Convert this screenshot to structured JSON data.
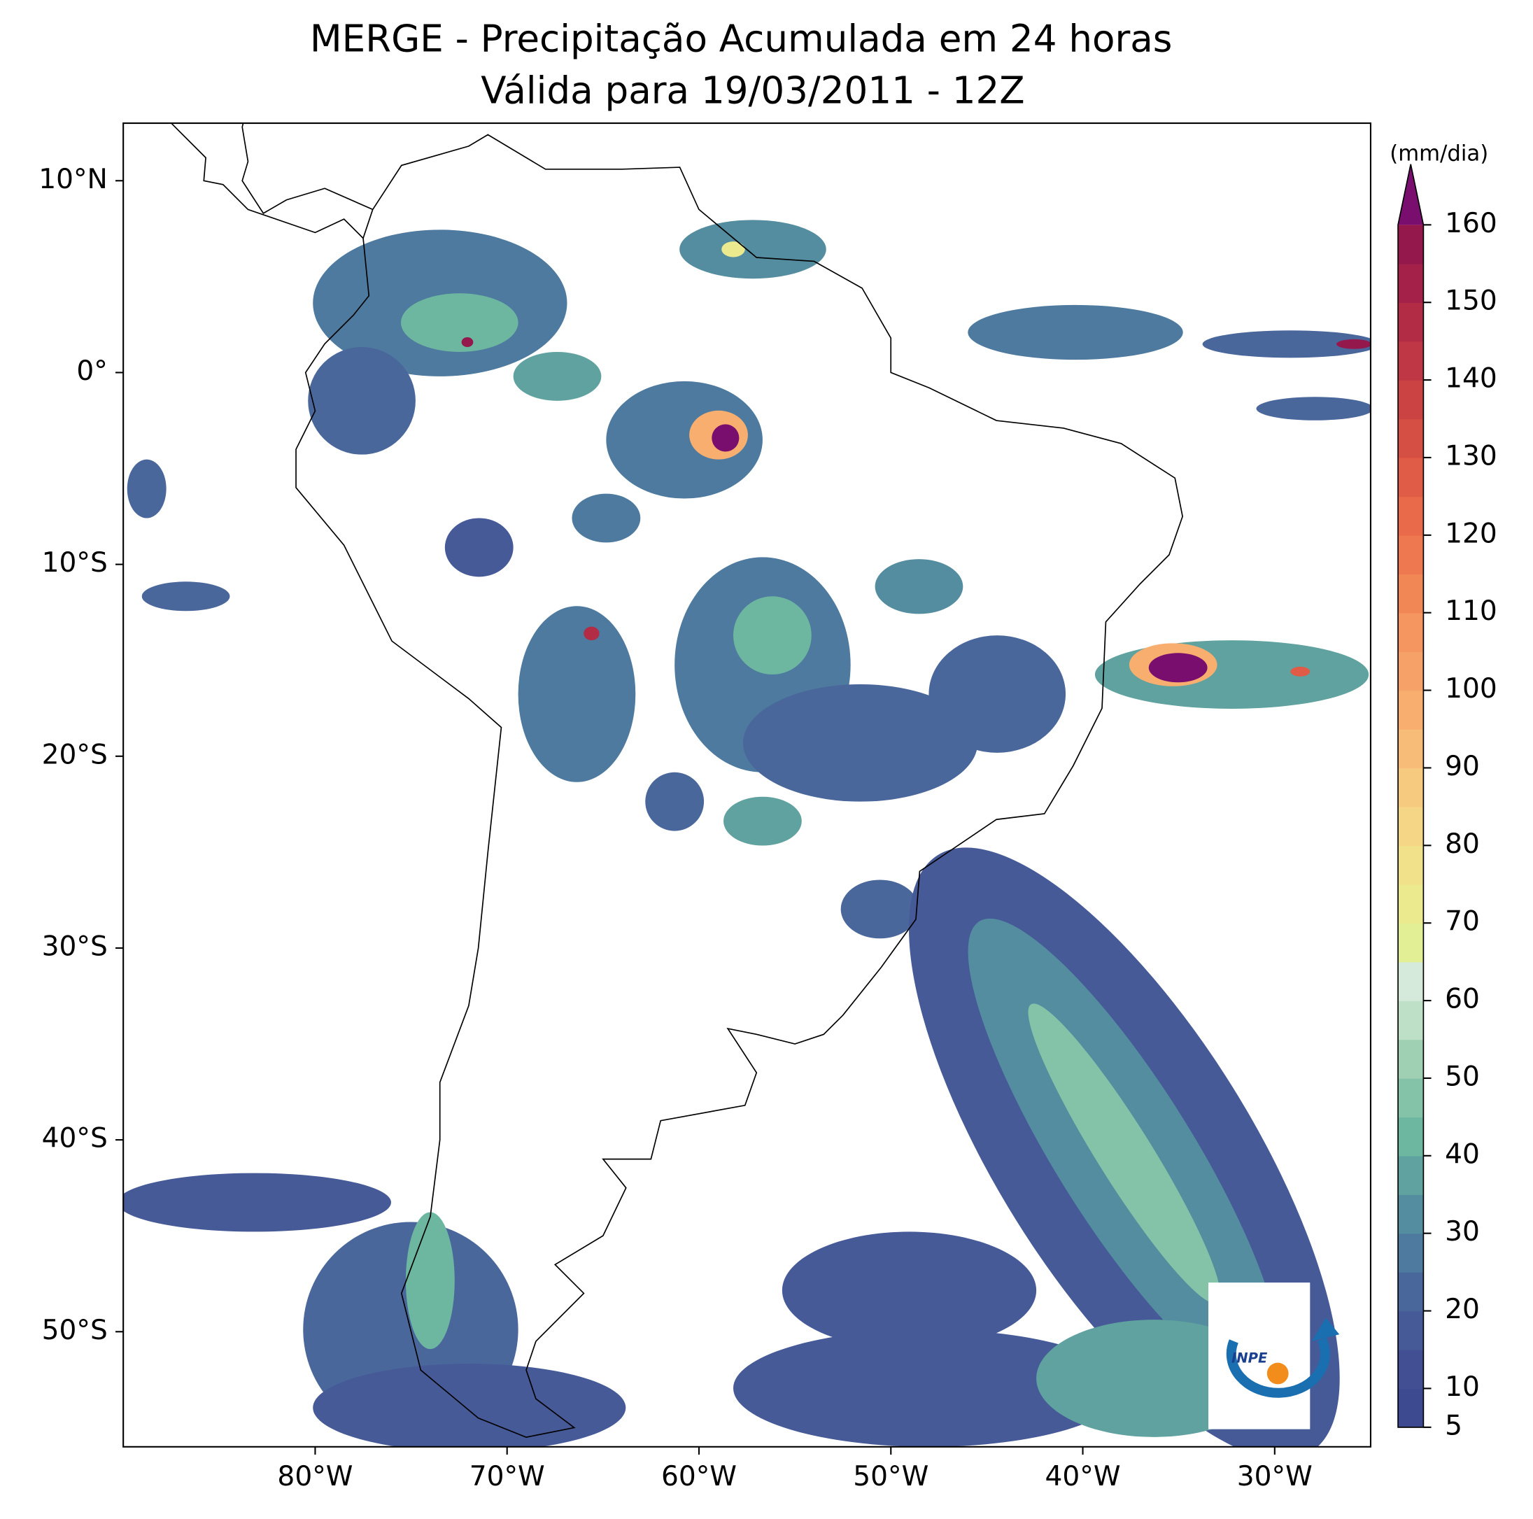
{
  "title": [
    "MERGE - Precipitação Acumulada em 24 horas",
    "Válida para 19/03/2011 - 12Z"
  ],
  "map": {
    "xlim": [
      -90,
      -25
    ],
    "ylim": [
      -56,
      13
    ],
    "xticks": [
      {
        "value": -80,
        "label": "80°W"
      },
      {
        "value": -70,
        "label": "70°W"
      },
      {
        "value": -60,
        "label": "60°W"
      },
      {
        "value": -50,
        "label": "50°W"
      },
      {
        "value": -40,
        "label": "40°W"
      },
      {
        "value": -30,
        "label": "30°W"
      }
    ],
    "yticks": [
      {
        "value": 10,
        "label": "10°N"
      },
      {
        "value": 0,
        "label": "0°"
      },
      {
        "value": -10,
        "label": "10°S"
      },
      {
        "value": -20,
        "label": "20°S"
      },
      {
        "value": -30,
        "label": "30°S"
      },
      {
        "value": -40,
        "label": "40°S"
      },
      {
        "value": -50,
        "label": "50°S"
      }
    ]
  },
  "colorbar": {
    "label": "(mm/dia)",
    "clim": [
      5,
      160
    ],
    "ticks": [
      5,
      10,
      20,
      30,
      40,
      50,
      60,
      70,
      80,
      90,
      100,
      110,
      120,
      130,
      140,
      150,
      160
    ],
    "colors": [
      "#3e4a8f",
      "#434f93",
      "#465a98",
      "#4a679c",
      "#4d7a9e",
      "#548d9f",
      "#5fa29f",
      "#6db6a0",
      "#84c3a7",
      "#a0d0b3",
      "#bde0c6",
      "#d6eadb",
      "#e3ef94",
      "#ecea8e",
      "#f1e18a",
      "#f4d686",
      "#f6cb80",
      "#f7bd78",
      "#f7ae6f",
      "#f6a167",
      "#f5955f",
      "#f28756",
      "#ee784f",
      "#e86a4a",
      "#e05c46",
      "#d64f44",
      "#cb4343",
      "#bf3744",
      "#b22c46",
      "#a42149",
      "#95184d"
    ],
    "extend_color": "#7a0e6e"
  },
  "logo_text": "INPE"
}
